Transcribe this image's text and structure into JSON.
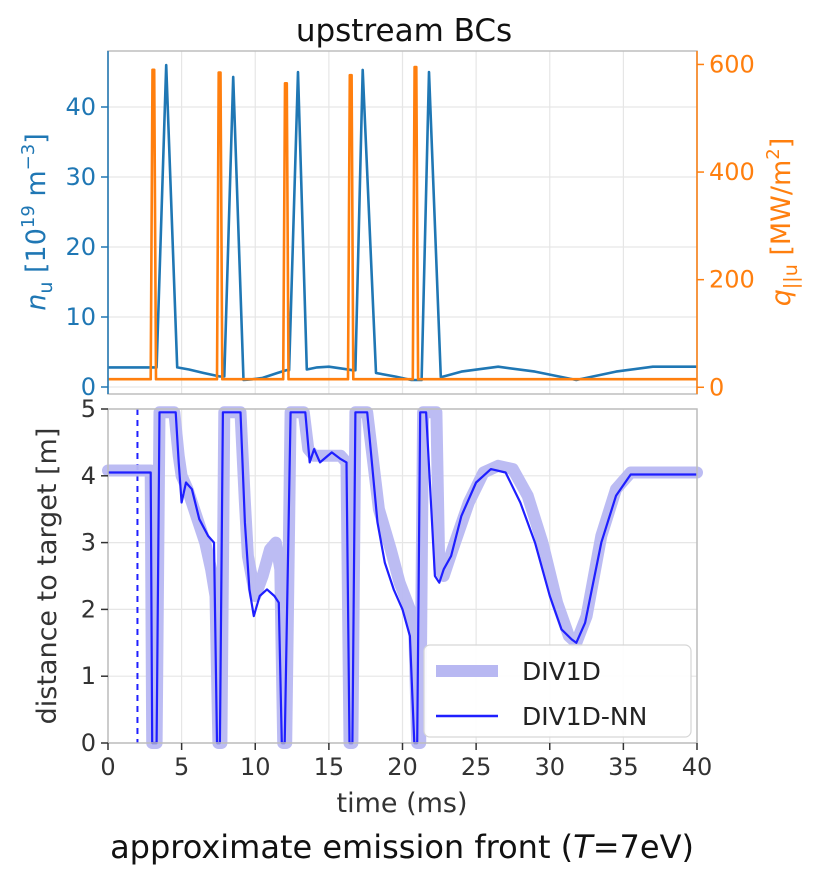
{
  "figure": {
    "top_title": "upstream BCs",
    "caption": "approximate emission front (T=7eV)",
    "caption_parts": {
      "pre": "approximate emission front (",
      "var": "T",
      "post": "=7eV)"
    }
  },
  "colors": {
    "blue": "#1f77b4",
    "orange": "#ff7f0e",
    "nn_line": "#1f1fff",
    "div1d_band": "#b8b8f2",
    "grid": "#e6e6e6",
    "spine": "#bdbdbd",
    "text": "#333333"
  },
  "chart_data": [
    {
      "id": "upstream",
      "type": "line",
      "title": "upstream BCs",
      "xlim": [
        0,
        40
      ],
      "xticks": [
        0,
        5,
        10,
        15,
        20,
        25,
        30,
        35,
        40
      ],
      "grid": true,
      "ylabel_left": {
        "var": "n",
        "sub": "u",
        "unit_pre": " [10",
        "unit_sup": "19",
        "unit_mid": " m",
        "unit_sup2": "−3",
        "unit_post": "]"
      },
      "ylabel_right": {
        "var": "q",
        "sub": "||u",
        "unit_pre": " [MW/m",
        "unit_sup": "2",
        "unit_post": "]"
      },
      "ylim_left": [
        -1,
        48
      ],
      "yticks_left": [
        0,
        10,
        20,
        30,
        40
      ],
      "ylim_right": [
        -12.5,
        625
      ],
      "yticks_right": [
        0,
        200,
        400,
        600
      ],
      "series": [
        {
          "axis": "left",
          "color": "#1f77b4",
          "x": [
            0,
            3.1,
            3.3,
            3.95,
            4.7,
            5.5,
            6.5,
            7.6,
            7.9,
            8.5,
            9.2,
            9.8,
            10.5,
            11.5,
            12.1,
            12.3,
            12.9,
            13.5,
            14.2,
            15.0,
            16.0,
            16.6,
            16.8,
            17.3,
            18.2,
            19.5,
            20.6,
            21.1,
            21.3,
            21.8,
            22.6,
            24.0,
            26.5,
            29.0,
            31.8,
            34.5,
            37.0,
            40
          ],
          "y": [
            2.8,
            2.8,
            2.8,
            46.0,
            2.8,
            2.5,
            2.0,
            1.5,
            1.5,
            44.3,
            1.0,
            1.1,
            1.3,
            2.0,
            2.4,
            2.4,
            45.0,
            2.5,
            2.8,
            2.9,
            2.6,
            2.4,
            2.4,
            45.3,
            2.0,
            1.5,
            1.0,
            1.0,
            1.0,
            45.0,
            1.4,
            2.2,
            2.9,
            2.2,
            1.0,
            2.2,
            2.9,
            2.9
          ]
        },
        {
          "axis": "right",
          "color": "#ff7f0e",
          "x": [
            0,
            2.9,
            3.02,
            3.14,
            3.26,
            7.4,
            7.52,
            7.64,
            7.76,
            11.9,
            12.02,
            12.14,
            12.26,
            16.3,
            16.42,
            16.54,
            16.66,
            20.7,
            20.82,
            20.94,
            21.06,
            40
          ],
          "y": [
            15,
            15,
            590,
            590,
            15,
            15,
            585,
            585,
            15,
            15,
            565,
            565,
            15,
            15,
            580,
            580,
            15,
            15,
            595,
            595,
            15,
            15
          ]
        }
      ]
    },
    {
      "id": "emission_front",
      "type": "line",
      "xlabel": "time (ms)",
      "ylabel": "distance to target [m]",
      "xlim": [
        0,
        40
      ],
      "ylim": [
        0,
        5
      ],
      "xticks": [
        0,
        5,
        10,
        15,
        20,
        25,
        30,
        35,
        40
      ],
      "yticks": [
        0,
        1,
        2,
        3,
        4,
        5
      ],
      "grid": true,
      "vline": {
        "x": 2.0,
        "style": "dashed",
        "color": "#1f1fff"
      },
      "legend": {
        "placement": "bottom-right",
        "entries": [
          "DIV1D",
          "DIV1D-NN"
        ]
      },
      "series": [
        {
          "name": "DIV1D",
          "style": "band",
          "color": "#b8b8f2",
          "x": [
            0,
            2.9,
            3.0,
            3.3,
            3.5,
            4.5,
            4.8,
            5.0,
            5.4,
            6.0,
            6.6,
            7.0,
            7.3,
            7.5,
            7.7,
            7.9,
            8.1,
            8.4,
            9.0,
            9.3,
            9.5,
            10.0,
            10.5,
            11.0,
            11.4,
            11.7,
            11.9,
            12.1,
            12.4,
            13.0,
            13.3,
            13.6,
            14.0,
            14.5,
            15.2,
            15.8,
            16.2,
            16.4,
            16.6,
            16.8,
            17.1,
            17.6,
            18.4,
            19.2,
            19.8,
            20.5,
            20.8,
            21.0,
            21.2,
            21.4,
            21.6,
            22.3,
            22.5,
            22.8,
            23.4,
            24.5,
            25.5,
            26.5,
            27.5,
            28.5,
            29.5,
            30.5,
            31.3,
            31.8,
            32.5,
            33.5,
            34.5,
            35.5,
            37,
            40
          ],
          "y": [
            4.08,
            4.08,
            0,
            0,
            4.95,
            4.95,
            4.3,
            4.0,
            3.8,
            3.4,
            3.0,
            2.6,
            2.2,
            0,
            0,
            4.95,
            4.95,
            4.95,
            4.95,
            3.6,
            2.8,
            2.2,
            2.5,
            2.9,
            3.0,
            2.6,
            0,
            0,
            4.95,
            4.95,
            4.95,
            4.4,
            4.3,
            4.3,
            4.3,
            4.3,
            4.2,
            0,
            0,
            4.95,
            4.95,
            4.95,
            3.5,
            2.9,
            2.4,
            2.0,
            1.7,
            0,
            0,
            4.95,
            4.95,
            4.95,
            2.6,
            2.5,
            2.9,
            3.6,
            4.05,
            4.15,
            4.1,
            3.7,
            3.0,
            2.1,
            1.6,
            1.5,
            1.9,
            3.1,
            3.8,
            4.05,
            4.05,
            4.05
          ]
        },
        {
          "name": "DIV1D-NN",
          "style": "line",
          "color": "#1f1fff",
          "x": [
            0,
            2.9,
            3.0,
            3.3,
            3.5,
            4.6,
            4.8,
            5.0,
            5.3,
            5.7,
            6.2,
            6.8,
            7.2,
            7.4,
            7.6,
            7.8,
            8.1,
            8.4,
            9.0,
            9.3,
            9.6,
            9.9,
            10.3,
            10.8,
            11.3,
            11.6,
            11.8,
            12.0,
            12.4,
            12.8,
            13.4,
            13.7,
            14.0,
            14.4,
            15.2,
            15.8,
            16.2,
            16.4,
            16.6,
            16.8,
            17.1,
            17.6,
            18.3,
            18.8,
            19.4,
            20.0,
            20.5,
            20.8,
            21.0,
            21.2,
            21.4,
            21.6,
            22.2,
            22.5,
            22.8,
            23.3,
            24.0,
            25.0,
            26.0,
            27.0,
            28.0,
            29.0,
            30.0,
            30.8,
            31.5,
            31.8,
            32.4,
            33.5,
            34.5,
            35.5,
            37,
            40
          ],
          "y": [
            4.05,
            4.05,
            0,
            0,
            4.95,
            4.95,
            4.2,
            3.6,
            3.9,
            3.8,
            3.35,
            3.1,
            3.0,
            0,
            0,
            4.95,
            4.95,
            4.95,
            4.95,
            3.3,
            2.3,
            1.9,
            2.2,
            2.3,
            2.2,
            2.1,
            0,
            0,
            4.95,
            4.95,
            4.95,
            4.2,
            4.4,
            4.2,
            4.35,
            4.25,
            4.2,
            0,
            0,
            4.95,
            4.95,
            4.95,
            3.3,
            2.7,
            2.3,
            2.0,
            1.6,
            0,
            0,
            4.95,
            4.95,
            4.95,
            2.5,
            2.4,
            2.6,
            2.8,
            3.4,
            3.9,
            4.1,
            4.05,
            3.6,
            3.0,
            2.2,
            1.7,
            1.55,
            1.5,
            1.8,
            3.0,
            3.7,
            4.02,
            4.02,
            4.02
          ]
        }
      ]
    }
  ]
}
